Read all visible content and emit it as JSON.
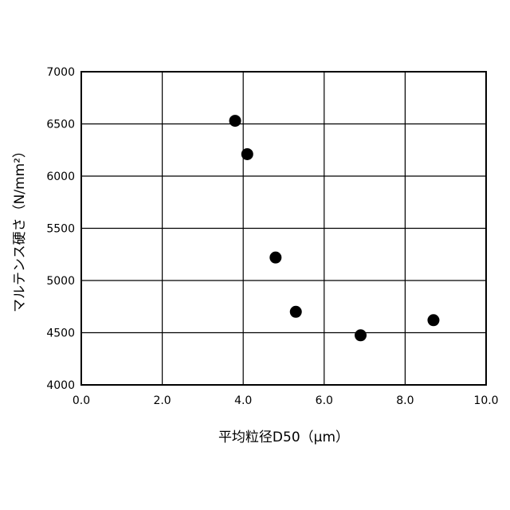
{
  "chart_data": {
    "type": "scatter",
    "title": "",
    "xlabel": "平均粒径D50（μm）",
    "ylabel": "マルテンス硬さ（N/mm²）",
    "xlim": [
      0,
      10
    ],
    "ylim": [
      4000,
      7000
    ],
    "xticks": [
      0,
      2,
      4,
      6,
      8,
      10
    ],
    "xtick_labels": [
      "0.0",
      "2.0",
      "4.0",
      "6.0",
      "8.0",
      "10.0"
    ],
    "yticks": [
      4000,
      4500,
      5000,
      5500,
      6000,
      6500,
      7000
    ],
    "ytick_labels": [
      "4000",
      "4500",
      "5000",
      "5500",
      "6000",
      "6500",
      "7000"
    ],
    "grid": true,
    "marker_color": "#000000",
    "points": [
      {
        "x": 3.8,
        "y": 6530
      },
      {
        "x": 4.1,
        "y": 6210
      },
      {
        "x": 4.8,
        "y": 5220
      },
      {
        "x": 5.3,
        "y": 4700
      },
      {
        "x": 6.9,
        "y": 4475
      },
      {
        "x": 8.7,
        "y": 4620
      }
    ]
  }
}
